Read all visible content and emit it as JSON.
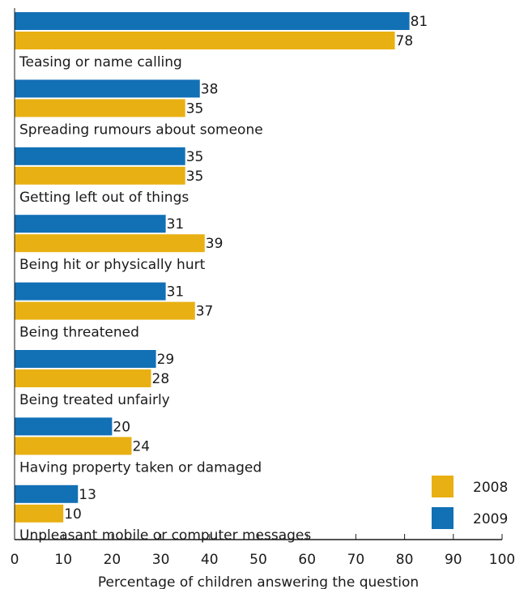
{
  "chart_data": {
    "type": "bar",
    "orientation": "horizontal",
    "categories": [
      "Teasing or name calling",
      "Spreading rumours about someone",
      "Getting left out of things",
      "Being hit or physically hurt",
      "Being threatened",
      "Being treated unfairly",
      "Having property taken or damaged",
      "Unpleasant mobile or computer messages"
    ],
    "series": [
      {
        "name": "2009",
        "color": "#1270b5",
        "values": [
          81,
          38,
          35,
          31,
          31,
          29,
          20,
          13
        ]
      },
      {
        "name": "2008",
        "color": "#e8b012",
        "values": [
          78,
          35,
          35,
          39,
          37,
          28,
          24,
          10
        ]
      }
    ],
    "xlabel": "Percentage of children answering the question",
    "ylabel": "",
    "xlim": [
      0,
      100
    ],
    "xticks": [
      0,
      10,
      20,
      30,
      40,
      50,
      60,
      70,
      80,
      90,
      100
    ],
    "legend": {
      "placement": "bottom-right",
      "entries": [
        {
          "name": "2008",
          "color": "#e8b012"
        },
        {
          "name": "2009",
          "color": "#1270b5"
        }
      ]
    },
    "grid": false,
    "data_labels": true
  }
}
